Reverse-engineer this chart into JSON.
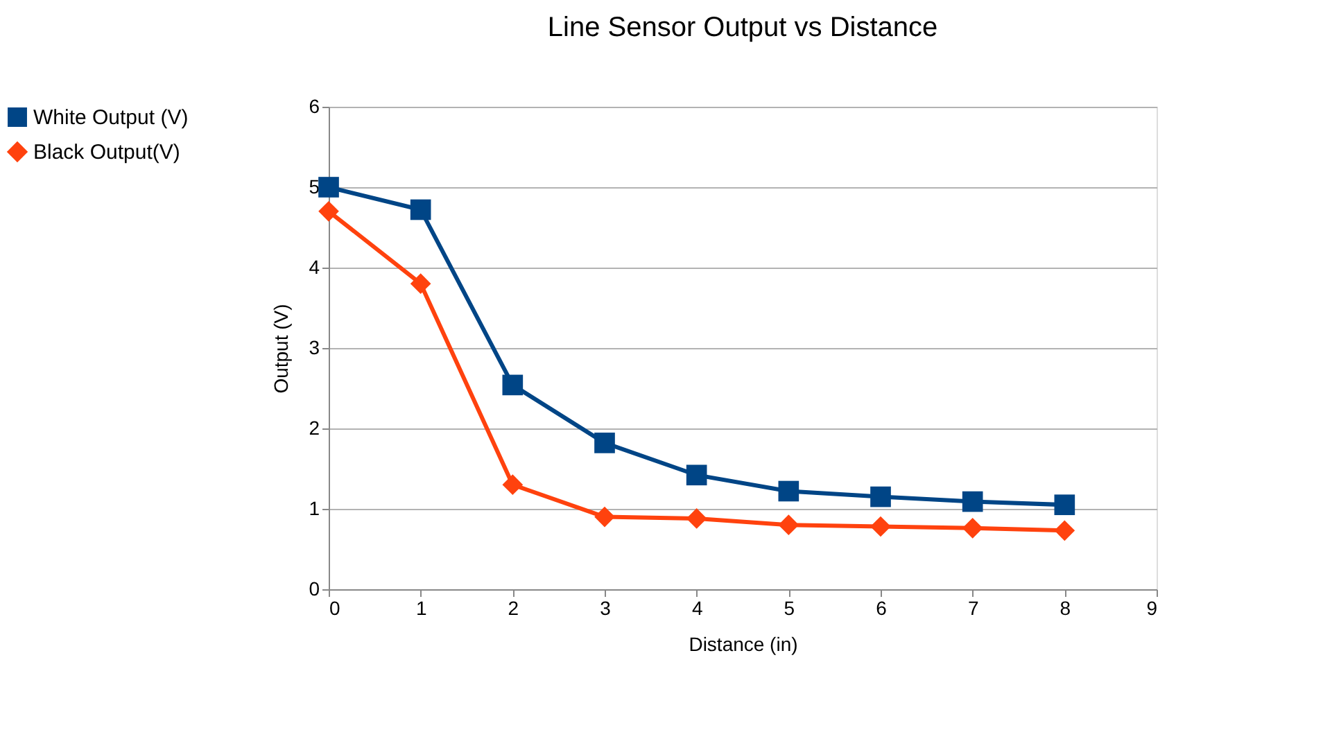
{
  "chart_data": {
    "type": "line",
    "title": "Line Sensor Output vs Distance",
    "xlabel": "Distance (in)",
    "ylabel": "Output (V)",
    "x": [
      0,
      1,
      2,
      3,
      4,
      5,
      6,
      7,
      8
    ],
    "series": [
      {
        "name": "White Output (V)",
        "color": "#004586",
        "marker": "square",
        "values": [
          5.0,
          4.72,
          2.54,
          1.82,
          1.42,
          1.22,
          1.15,
          1.09,
          1.05
        ]
      },
      {
        "name": "Black Output(V)",
        "color": "#ff420e",
        "marker": "diamond",
        "values": [
          4.7,
          3.8,
          1.3,
          0.9,
          0.88,
          0.8,
          0.78,
          0.76,
          0.73
        ]
      }
    ],
    "xlim": [
      0,
      9
    ],
    "xticks": [
      0,
      1,
      2,
      3,
      4,
      5,
      6,
      7,
      8,
      9
    ],
    "ylim": [
      0,
      6
    ],
    "yticks": [
      0,
      1,
      2,
      3,
      4,
      5,
      6
    ],
    "grid": "y",
    "legend": "left",
    "line_style": "solid"
  }
}
